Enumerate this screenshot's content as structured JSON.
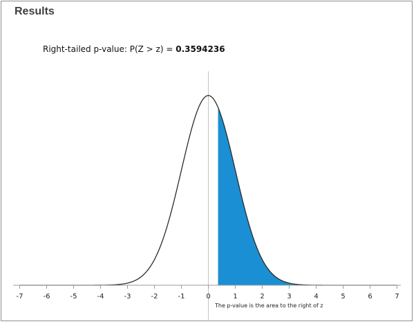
{
  "results": {
    "title": "Results",
    "pvalue_label": "Right-tailed p-value: P(Z > z) = ",
    "pvalue_value": "0.3594236"
  },
  "chart_data": {
    "type": "area",
    "title": "",
    "xlabel": "",
    "ylabel": "",
    "distribution": "standard normal",
    "xlim": [
      -7,
      7
    ],
    "ticks": [
      -7,
      -6,
      -5,
      -4,
      -3,
      -2,
      -1,
      0,
      1,
      2,
      3,
      4,
      5,
      6,
      7
    ],
    "tick_labels": [
      "-7",
      "-6",
      "-5",
      "-4",
      "-3",
      "-2",
      "-1",
      "0",
      "1",
      "2",
      "3",
      "4",
      "5",
      "6",
      "7"
    ],
    "z": 0.36,
    "p_value": 0.3594236,
    "shaded_region": "right of z",
    "annotation": "The p-value is the area to the right of z",
    "grid": false,
    "fill_color": "#1b8fd3",
    "curve_color": "#2b2b2b",
    "axis_color": "#9a9a9a"
  }
}
